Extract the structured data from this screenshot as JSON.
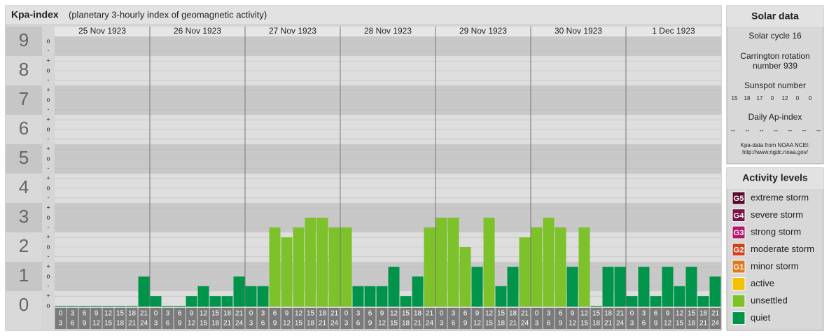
{
  "chart_data": {
    "type": "bar",
    "title": "Kpa-index",
    "subtitle": "(planetary 3-hourly index of geomagnetic activity)",
    "ylim": [
      0,
      9.5
    ],
    "yticks": [
      0,
      1,
      2,
      3,
      4,
      5,
      6,
      7,
      8,
      9
    ],
    "minor_ticks": [
      {
        "value": 0,
        "label": "o"
      },
      {
        "value": 0.33,
        "label": "+"
      },
      {
        "value": 0.67,
        "label": "-"
      },
      {
        "value": 1,
        "label": "o"
      },
      {
        "value": 1.33,
        "label": "+"
      },
      {
        "value": 1.67,
        "label": "-"
      },
      {
        "value": 2,
        "label": "o"
      },
      {
        "value": 2.33,
        "label": "+"
      },
      {
        "value": 2.67,
        "label": "-"
      },
      {
        "value": 3,
        "label": "o"
      },
      {
        "value": 3.33,
        "label": "+"
      },
      {
        "value": 3.67,
        "label": "-"
      },
      {
        "value": 4,
        "label": "o"
      },
      {
        "value": 4.33,
        "label": "+"
      },
      {
        "value": 4.67,
        "label": "-"
      },
      {
        "value": 5,
        "label": "o"
      },
      {
        "value": 5.33,
        "label": "+"
      },
      {
        "value": 5.67,
        "label": "-"
      },
      {
        "value": 6,
        "label": "o"
      },
      {
        "value": 6.33,
        "label": "+"
      },
      {
        "value": 6.67,
        "label": "-"
      },
      {
        "value": 7,
        "label": "o"
      },
      {
        "value": 7.33,
        "label": "+"
      },
      {
        "value": 7.67,
        "label": "-"
      },
      {
        "value": 8,
        "label": "o"
      },
      {
        "value": 8.33,
        "label": "+"
      },
      {
        "value": 8.67,
        "label": "-"
      },
      {
        "value": 9,
        "label": "o"
      }
    ],
    "grid": true,
    "hour_starts": [
      0,
      3,
      6,
      9,
      12,
      15,
      18,
      21
    ],
    "hour_ends": [
      3,
      6,
      9,
      12,
      15,
      18,
      21,
      24
    ],
    "days": [
      {
        "date": "25 Nov 1923",
        "values": [
          0,
          0,
          0,
          0,
          0,
          0,
          0,
          1
        ],
        "colors": [
          "#00944a",
          "#00944a",
          "#00944a",
          "#00944a",
          "#00944a",
          "#00944a",
          "#00944a",
          "#00944a"
        ]
      },
      {
        "date": "26 Nov 1923",
        "values": [
          0.33,
          0,
          0,
          0.33,
          0.67,
          0.33,
          0.33,
          1
        ],
        "colors": [
          "#00944a",
          "#00944a",
          "#00944a",
          "#00944a",
          "#00944a",
          "#00944a",
          "#00944a",
          "#00944a"
        ]
      },
      {
        "date": "27 Nov 1923",
        "values": [
          0.67,
          0.67,
          2.67,
          2.33,
          2.67,
          3,
          3,
          2.67
        ],
        "colors": [
          "#00944a",
          "#00944a",
          "#7dc12b",
          "#7dc12b",
          "#7dc12b",
          "#7dc12b",
          "#7dc12b",
          "#7dc12b"
        ]
      },
      {
        "date": "28 Nov 1923",
        "values": [
          2.67,
          0.67,
          0.67,
          0.67,
          1.33,
          0.33,
          1,
          2.67
        ],
        "colors": [
          "#7dc12b",
          "#00944a",
          "#00944a",
          "#00944a",
          "#00944a",
          "#00944a",
          "#00944a",
          "#7dc12b"
        ]
      },
      {
        "date": "29 Nov 1923",
        "values": [
          3,
          3,
          2,
          1.33,
          3,
          0.67,
          1.33,
          2.33
        ],
        "colors": [
          "#7dc12b",
          "#7dc12b",
          "#7dc12b",
          "#00944a",
          "#7dc12b",
          "#00944a",
          "#00944a",
          "#7dc12b"
        ]
      },
      {
        "date": "30 Nov 1923",
        "values": [
          2.67,
          3,
          2.67,
          1.33,
          2.67,
          0,
          1.33,
          1.33
        ],
        "colors": [
          "#7dc12b",
          "#7dc12b",
          "#7dc12b",
          "#00944a",
          "#7dc12b",
          "#00944a",
          "#00944a",
          "#00944a"
        ]
      },
      {
        "date": "1 Dec 1923",
        "values": [
          0.33,
          1.33,
          0.33,
          1.33,
          0.67,
          1.33,
          0.33,
          1
        ],
        "colors": [
          "#00944a",
          "#00944a",
          "#00944a",
          "#00944a",
          "#00944a",
          "#00944a",
          "#00944a",
          "#00944a"
        ]
      }
    ],
    "solar": {
      "title": "Solar data",
      "cycle": "Solar cycle 16",
      "rotation_1": "Carrington rotation",
      "rotation_2": "number 939",
      "sunspot_title": "Sunspot number",
      "sunspots": [
        15,
        18,
        17,
        0,
        12,
        0,
        0
      ],
      "ap_title": "Daily Ap-index",
      "ap": [
        "--",
        "--",
        "--",
        "--",
        "--",
        "--",
        "--"
      ],
      "source_1": "Kpa-data from NOAA NCEI:",
      "source_2": "http://www.ngdc.noaa.gov/"
    },
    "legend": {
      "title": "Activity levels",
      "items": [
        {
          "badge": "G5",
          "label": "extreme storm",
          "color": "#5b0a2e"
        },
        {
          "badge": "G4",
          "label": "severe storm",
          "color": "#7a1245"
        },
        {
          "badge": "G3",
          "label": "strong storm",
          "color": "#b5176a"
        },
        {
          "badge": "G2",
          "label": "moderate storm",
          "color": "#d3401f"
        },
        {
          "badge": "G1",
          "label": "minor storm",
          "color": "#e0781c"
        },
        {
          "label": "active",
          "color": "#f5c200"
        },
        {
          "label": "unsettled",
          "color": "#7dc12b"
        },
        {
          "label": "quiet",
          "color": "#00944a"
        }
      ]
    }
  }
}
